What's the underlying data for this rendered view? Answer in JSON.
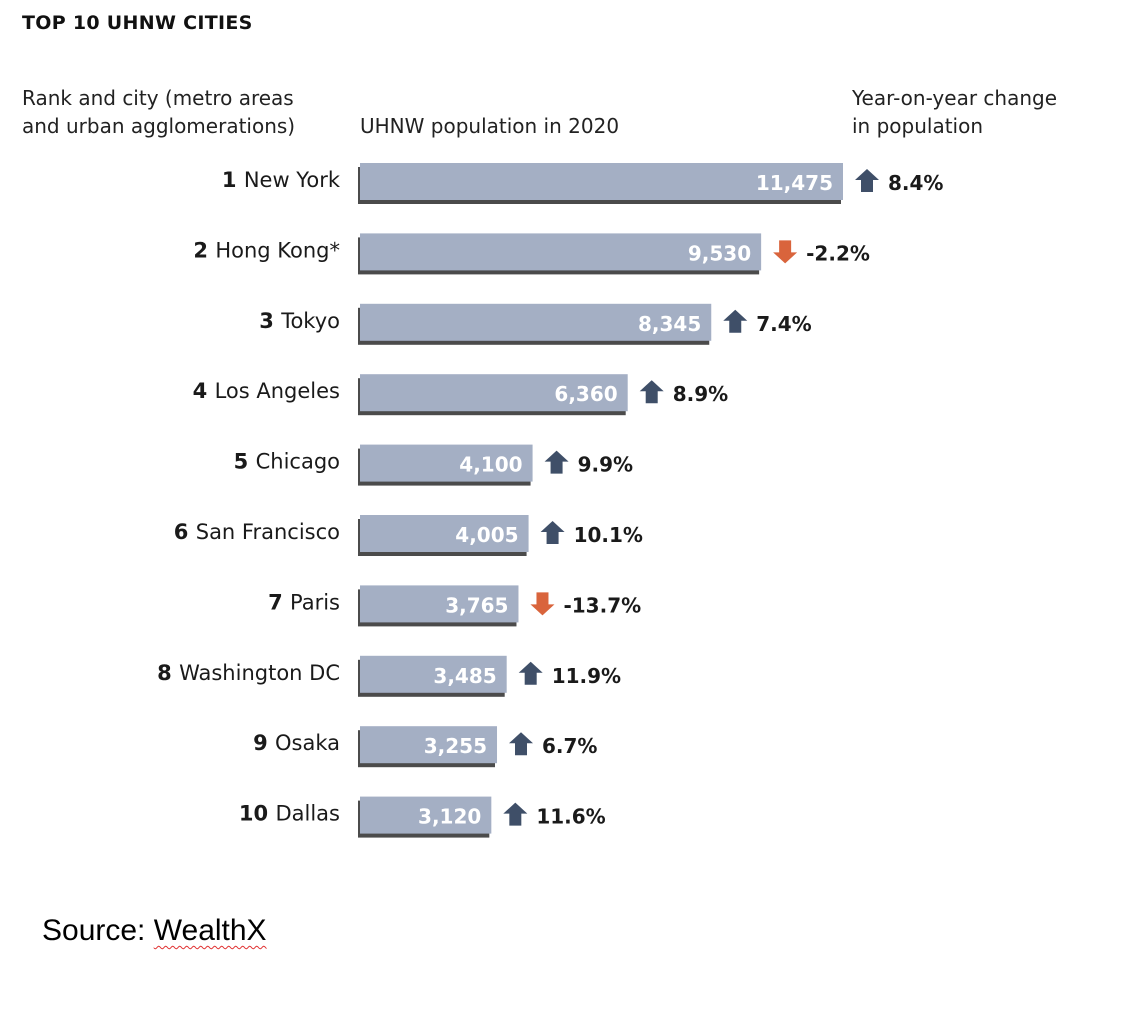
{
  "header": {
    "title": "TOP 10 UHNW CITIES",
    "rank_label_line1": "Rank and city (metro areas",
    "rank_label_line2": "and urban agglomerations)",
    "population_label": "UHNW population in 2020",
    "change_label_line1": "Year-on-year change",
    "change_label_line2": "in population"
  },
  "colors": {
    "bar": "#a4afc4",
    "bar_shadow": "#4b4b4b",
    "up_arrow": "#3f4f68",
    "down_arrow": "#d9643c"
  },
  "chart_data": {
    "type": "bar",
    "orientation": "horizontal",
    "categories": [
      "New York",
      "Hong Kong*",
      "Tokyo",
      "Los Angeles",
      "Chicago",
      "San Francisco",
      "Paris",
      "Washington DC",
      "Osaka",
      "Dallas"
    ],
    "ranks": [
      "1",
      "2",
      "3",
      "4",
      "5",
      "6",
      "7",
      "8",
      "9",
      "10"
    ],
    "values": [
      11475,
      9530,
      8345,
      6360,
      4100,
      4005,
      3765,
      3485,
      3255,
      3120
    ],
    "value_labels": [
      "11,475",
      "9,530",
      "8,345",
      "6,360",
      "4,100",
      "4,005",
      "3,765",
      "3,485",
      "3,255",
      "3,120"
    ],
    "change_labels": [
      "8.4%",
      "-2.2%",
      "7.4%",
      "8.9%",
      "9.9%",
      "10.1%",
      "-13.7%",
      "11.9%",
      "6.7%",
      "11.6%"
    ],
    "change_direction": [
      "up",
      "down",
      "up",
      "up",
      "up",
      "up",
      "down",
      "up",
      "up",
      "up"
    ],
    "grid": false
  },
  "footer": {
    "source_prefix": "Source: ",
    "source_name": "WealthX"
  }
}
